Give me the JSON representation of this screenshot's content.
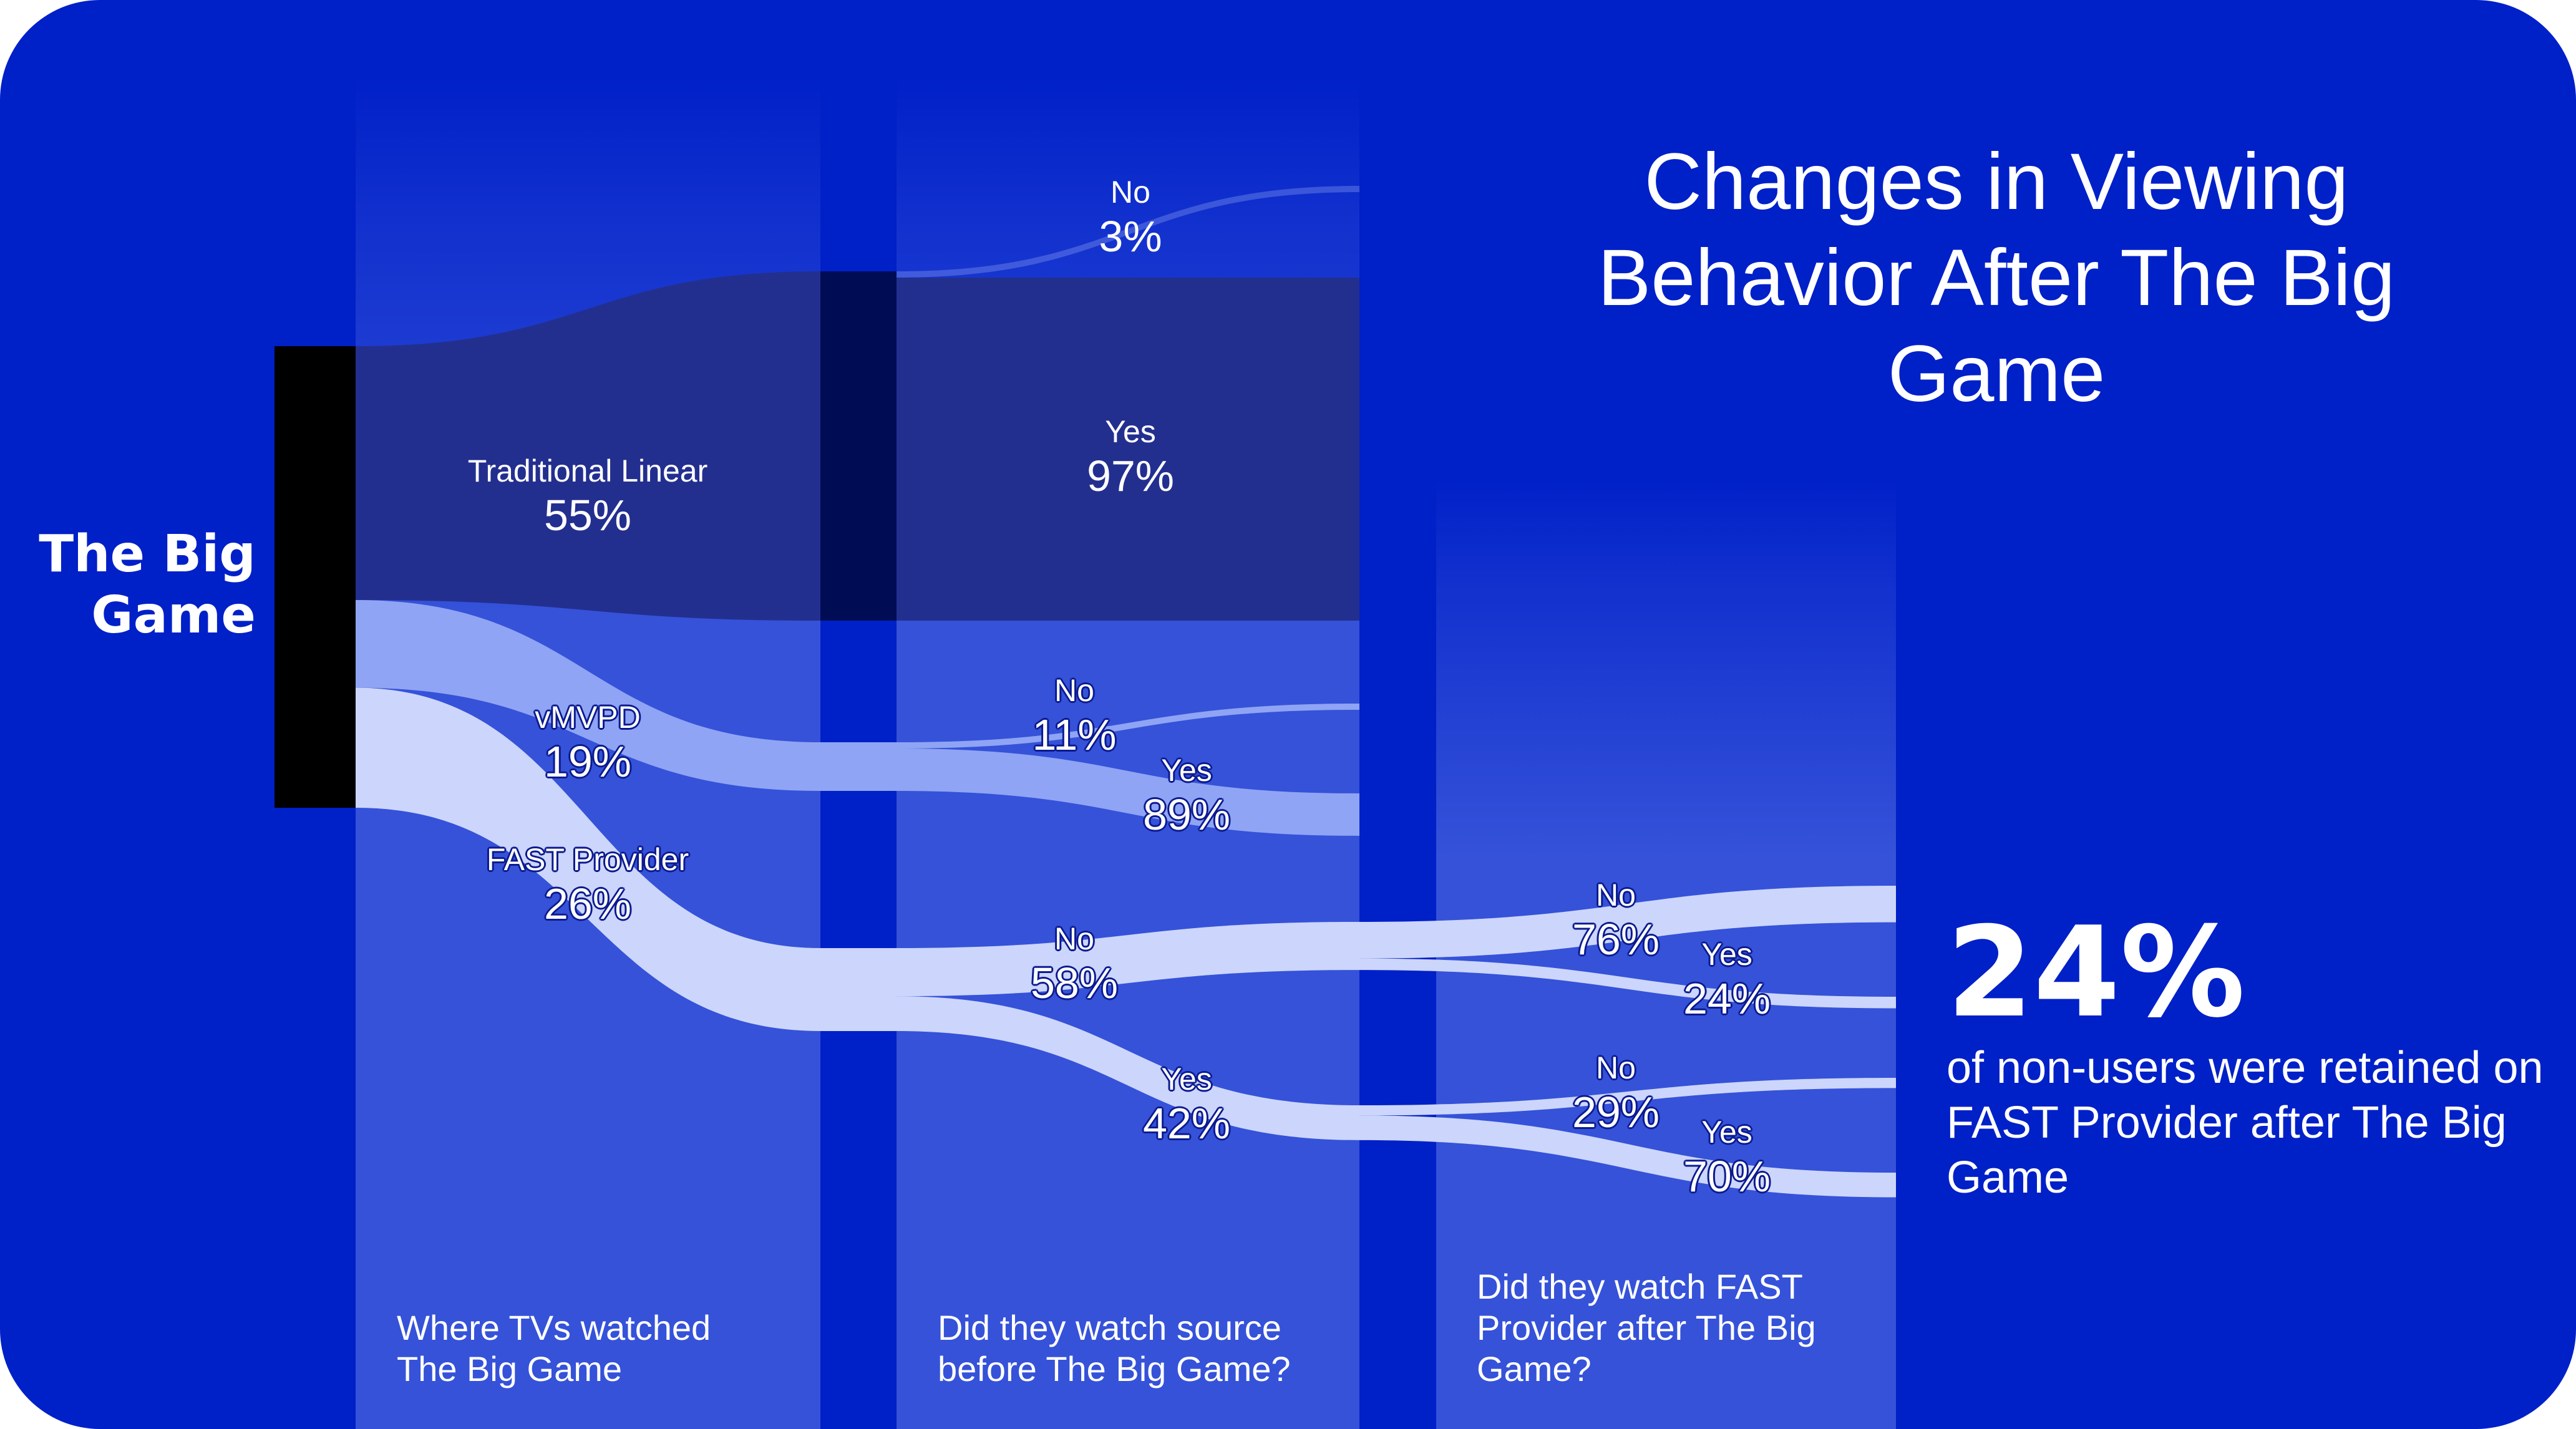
{
  "title": "Changes in Viewing Behavior After The Big Game",
  "root": {
    "label": "The Big Game"
  },
  "columns": [
    {
      "caption": "Where TVs watched The Big Game"
    },
    {
      "caption": "Did they watch source before The Big Game?"
    },
    {
      "caption": "Did they watch FAST Provider after The Big Game?"
    }
  ],
  "level1": [
    {
      "id": "linear",
      "name": "Traditional Linear",
      "pct": "55%",
      "value": 55
    },
    {
      "id": "vmvpd",
      "name": "vMVPD",
      "pct": "19%",
      "value": 19
    },
    {
      "id": "fast",
      "name": "FAST Provider",
      "pct": "26%",
      "value": 26
    }
  ],
  "level2": [
    {
      "id": "linear_no",
      "parent": "linear",
      "name": "No",
      "pct": "3%",
      "value": 3
    },
    {
      "id": "linear_yes",
      "parent": "linear",
      "name": "Yes",
      "pct": "97%",
      "value": 97
    },
    {
      "id": "vmvpd_no",
      "parent": "vmvpd",
      "name": "No",
      "pct": "11%",
      "value": 11
    },
    {
      "id": "vmvpd_yes",
      "parent": "vmvpd",
      "name": "Yes",
      "pct": "89%",
      "value": 89
    },
    {
      "id": "fast_no",
      "parent": "fast",
      "name": "No",
      "pct": "58%",
      "value": 58
    },
    {
      "id": "fast_yes",
      "parent": "fast",
      "name": "Yes",
      "pct": "42%",
      "value": 42
    }
  ],
  "level3": [
    {
      "id": "nonuser_no",
      "parent": "fast_no",
      "name": "No",
      "pct": "76%",
      "value": 76
    },
    {
      "id": "nonuser_yes",
      "parent": "fast_no",
      "name": "Yes",
      "pct": "24%",
      "value": 24
    },
    {
      "id": "user_no",
      "parent": "fast_yes",
      "name": "No",
      "pct": "29%",
      "value": 29
    },
    {
      "id": "user_yes",
      "parent": "fast_yes",
      "name": "Yes",
      "pct": "70%",
      "value": 70
    }
  ],
  "callout": {
    "value": "24%",
    "text": "of non-users were retained on FAST Provider after The Big Game"
  },
  "colors": {
    "background": "#0020c8",
    "column_panel": "#3552d9",
    "linear_flow": "#232f8f",
    "linear_node": "#000d55",
    "vmvpd_flow": "#8fa4f4",
    "fast_flow": "#ccd5fb",
    "root_bar": "#000000",
    "text": "#ffffff"
  }
}
